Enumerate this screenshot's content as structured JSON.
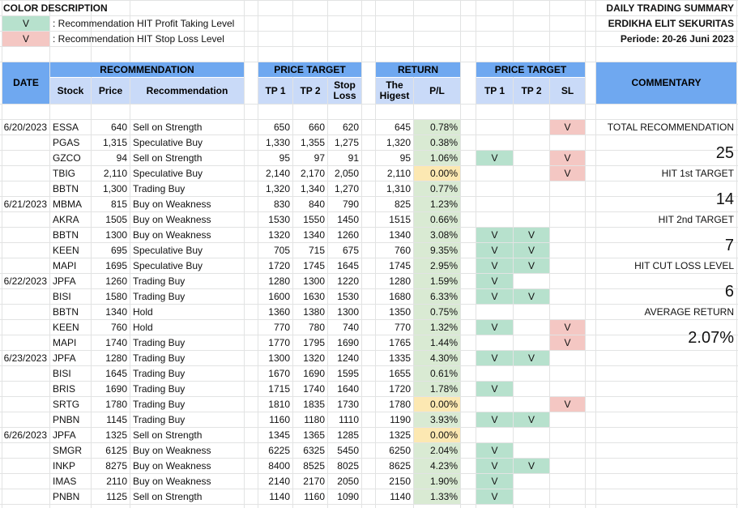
{
  "legend": {
    "title": "COLOR DESCRIPTION",
    "items": [
      {
        "mark": "V",
        "text": ": Recommendation HIT Profit Taking Level"
      },
      {
        "mark": "V",
        "text": ": Recommendation HIT Stop Loss Level"
      }
    ]
  },
  "report": {
    "title": "DAILY TRADING SUMMARY",
    "company": "ERDIKHA ELIT SEKURITAS",
    "period": "Periode: 20-26 Juni 2023"
  },
  "headers": {
    "date": "DATE",
    "recommendation_group": "RECOMMENDATION",
    "price_target_group": "PRICE TARGET",
    "return_group": "RETURN",
    "hit_group": "PRICE TARGET",
    "commentary": "COMMENTARY",
    "stock": "Stock",
    "price": "Price",
    "recommendation": "Recommendation",
    "tp1": "TP 1",
    "tp2": "TP 2",
    "stop_loss": "Stop Loss",
    "highest": "The Higest",
    "pl": "P/L",
    "hit_tp1": "TP 1",
    "hit_tp2": "TP 2",
    "sl": "SL"
  },
  "rows": [
    {
      "date": "6/20/2023",
      "stock": "ESSA",
      "price": "640",
      "rec": "Sell on Strength",
      "tp1": "650",
      "tp2": "660",
      "sl": "620",
      "high": "645",
      "pl": "0.78%",
      "pl_color": "green",
      "h1": "",
      "h2": "",
      "hsl": "V"
    },
    {
      "date": "",
      "stock": "PGAS",
      "price": "1,315",
      "rec": "Speculative Buy",
      "tp1": "1,330",
      "tp2": "1,355",
      "sl": "1,275",
      "high": "1,320",
      "pl": "0.38%",
      "pl_color": "green",
      "h1": "",
      "h2": "",
      "hsl": ""
    },
    {
      "date": "",
      "stock": "GZCO",
      "price": "94",
      "rec": "Sell on Strength",
      "tp1": "95",
      "tp2": "97",
      "sl": "91",
      "high": "95",
      "pl": "1.06%",
      "pl_color": "green",
      "h1": "V",
      "h2": "",
      "hsl": "V"
    },
    {
      "date": "",
      "stock": "TBIG",
      "price": "2,110",
      "rec": "Speculative Buy",
      "tp1": "2,140",
      "tp2": "2,170",
      "sl": "2,050",
      "high": "2,110",
      "pl": "0.00%",
      "pl_color": "yellow",
      "h1": "",
      "h2": "",
      "hsl": "V"
    },
    {
      "date": "",
      "stock": "BBTN",
      "price": "1,300",
      "rec": "Trading Buy",
      "tp1": "1,320",
      "tp2": "1,340",
      "sl": "1,270",
      "high": "1,310",
      "pl": "0.77%",
      "pl_color": "green",
      "h1": "",
      "h2": "",
      "hsl": ""
    },
    {
      "date": "6/21/2023",
      "stock": "MBMA",
      "price": "815",
      "rec": "Buy on Weakness",
      "tp1": "830",
      "tp2": "840",
      "sl": "790",
      "high": "825",
      "pl": "1.23%",
      "pl_color": "green",
      "h1": "",
      "h2": "",
      "hsl": ""
    },
    {
      "date": "",
      "stock": "AKRA",
      "price": "1505",
      "rec": "Buy on Weakness",
      "tp1": "1530",
      "tp2": "1550",
      "sl": "1450",
      "high": "1515",
      "pl": "0.66%",
      "pl_color": "green",
      "h1": "",
      "h2": "",
      "hsl": ""
    },
    {
      "date": "",
      "stock": "BBTN",
      "price": "1300",
      "rec": "Buy on Weakness",
      "tp1": "1320",
      "tp2": "1340",
      "sl": "1260",
      "high": "1340",
      "pl": "3.08%",
      "pl_color": "green",
      "h1": "V",
      "h2": "V",
      "hsl": ""
    },
    {
      "date": "",
      "stock": "KEEN",
      "price": "695",
      "rec": "Speculative Buy",
      "tp1": "705",
      "tp2": "715",
      "sl": "675",
      "high": "760",
      "pl": "9.35%",
      "pl_color": "green",
      "h1": "V",
      "h2": "V",
      "hsl": ""
    },
    {
      "date": "",
      "stock": "MAPI",
      "price": "1695",
      "rec": "Speculative Buy",
      "tp1": "1720",
      "tp2": "1745",
      "sl": "1645",
      "high": "1745",
      "pl": "2.95%",
      "pl_color": "green",
      "h1": "V",
      "h2": "V",
      "hsl": ""
    },
    {
      "date": "6/22/2023",
      "stock": "JPFA",
      "price": "1260",
      "rec": "Trading Buy",
      "tp1": "1280",
      "tp2": "1300",
      "sl": "1220",
      "high": "1280",
      "pl": "1.59%",
      "pl_color": "green",
      "h1": "V",
      "h2": "",
      "hsl": ""
    },
    {
      "date": "",
      "stock": "BISI",
      "price": "1580",
      "rec": "Trading Buy",
      "tp1": "1600",
      "tp2": "1630",
      "sl": "1530",
      "high": "1680",
      "pl": "6.33%",
      "pl_color": "green",
      "h1": "V",
      "h2": "V",
      "hsl": ""
    },
    {
      "date": "",
      "stock": "BBTN",
      "price": "1340",
      "rec": "Hold",
      "tp1": "1360",
      "tp2": "1380",
      "sl": "1300",
      "high": "1350",
      "pl": "0.75%",
      "pl_color": "green",
      "h1": "",
      "h2": "",
      "hsl": ""
    },
    {
      "date": "",
      "stock": "KEEN",
      "price": "760",
      "rec": "Hold",
      "tp1": "770",
      "tp2": "780",
      "sl": "740",
      "high": "770",
      "pl": "1.32%",
      "pl_color": "green",
      "h1": "V",
      "h2": "",
      "hsl": "V"
    },
    {
      "date": "",
      "stock": "MAPI",
      "price": "1740",
      "rec": "Trading Buy",
      "tp1": "1770",
      "tp2": "1795",
      "sl": "1690",
      "high": "1765",
      "pl": "1.44%",
      "pl_color": "green",
      "h1": "",
      "h2": "",
      "hsl": "V"
    },
    {
      "date": "6/23/2023",
      "stock": "JPFA",
      "price": "1280",
      "rec": "Trading Buy",
      "tp1": "1300",
      "tp2": "1320",
      "sl": "1240",
      "high": "1335",
      "pl": "4.30%",
      "pl_color": "green",
      "h1": "V",
      "h2": "V",
      "hsl": ""
    },
    {
      "date": "",
      "stock": "BISI",
      "price": "1645",
      "rec": "Trading Buy",
      "tp1": "1670",
      "tp2": "1690",
      "sl": "1595",
      "high": "1655",
      "pl": "0.61%",
      "pl_color": "green",
      "h1": "",
      "h2": "",
      "hsl": ""
    },
    {
      "date": "",
      "stock": "BRIS",
      "price": "1690",
      "rec": "Trading Buy",
      "tp1": "1715",
      "tp2": "1740",
      "sl": "1640",
      "high": "1720",
      "pl": "1.78%",
      "pl_color": "green",
      "h1": "V",
      "h2": "",
      "hsl": ""
    },
    {
      "date": "",
      "stock": "SRTG",
      "price": "1780",
      "rec": "Trading Buy",
      "tp1": "1810",
      "tp2": "1835",
      "sl": "1730",
      "high": "1780",
      "pl": "0.00%",
      "pl_color": "yellow",
      "h1": "",
      "h2": "",
      "hsl": "V"
    },
    {
      "date": "",
      "stock": "PNBN",
      "price": "1145",
      "rec": "Trading Buy",
      "tp1": "1160",
      "tp2": "1180",
      "sl": "1110",
      "high": "1190",
      "pl": "3.93%",
      "pl_color": "green",
      "h1": "V",
      "h2": "V",
      "hsl": ""
    },
    {
      "date": "6/26/2023",
      "stock": "JPFA",
      "price": "1325",
      "rec": "Sell on Strength",
      "tp1": "1345",
      "tp2": "1365",
      "sl": "1285",
      "high": "1325",
      "pl": "0.00%",
      "pl_color": "yellow",
      "h1": "",
      "h2": "",
      "hsl": ""
    },
    {
      "date": "",
      "stock": "SMGR",
      "price": "6125",
      "rec": "Buy on Weakness",
      "tp1": "6225",
      "tp2": "6325",
      "sl": "5450",
      "high": "6250",
      "pl": "2.04%",
      "pl_color": "green",
      "h1": "V",
      "h2": "",
      "hsl": ""
    },
    {
      "date": "",
      "stock": "INKP",
      "price": "8275",
      "rec": "Buy on Weakness",
      "tp1": "8400",
      "tp2": "8525",
      "sl": "8025",
      "high": "8625",
      "pl": "4.23%",
      "pl_color": "green",
      "h1": "V",
      "h2": "V",
      "hsl": ""
    },
    {
      "date": "",
      "stock": "IMAS",
      "price": "2110",
      "rec": "Buy on Weakness",
      "tp1": "2140",
      "tp2": "2170",
      "sl": "2050",
      "high": "2150",
      "pl": "1.90%",
      "pl_color": "green",
      "h1": "V",
      "h2": "",
      "hsl": ""
    },
    {
      "date": "",
      "stock": "PNBN",
      "price": "1125",
      "rec": "Sell on Strength",
      "tp1": "1140",
      "tp2": "1160",
      "sl": "1090",
      "high": "1140",
      "pl": "1.33%",
      "pl_color": "green",
      "h1": "V",
      "h2": "",
      "hsl": ""
    }
  ],
  "commentary": {
    "total_label": "TOTAL RECOMMENDATION",
    "total_value": "25",
    "hit1_label": "HIT 1st TARGET",
    "hit1_value": "14",
    "hit2_label": "HIT 2nd TARGET",
    "hit2_value": "7",
    "cut_label": "HIT CUT LOSS LEVEL",
    "cut_value": "6",
    "avg_label": "AVERAGE RETURN",
    "avg_value": "2.07%"
  },
  "colors": {
    "header": "#6fa8f0",
    "subheader": "#c9daf8",
    "profit": "#b7e1cd",
    "stoploss": "#f4c7c3",
    "pl_positive": "#d9ead3",
    "pl_zero": "#fce8b2"
  }
}
